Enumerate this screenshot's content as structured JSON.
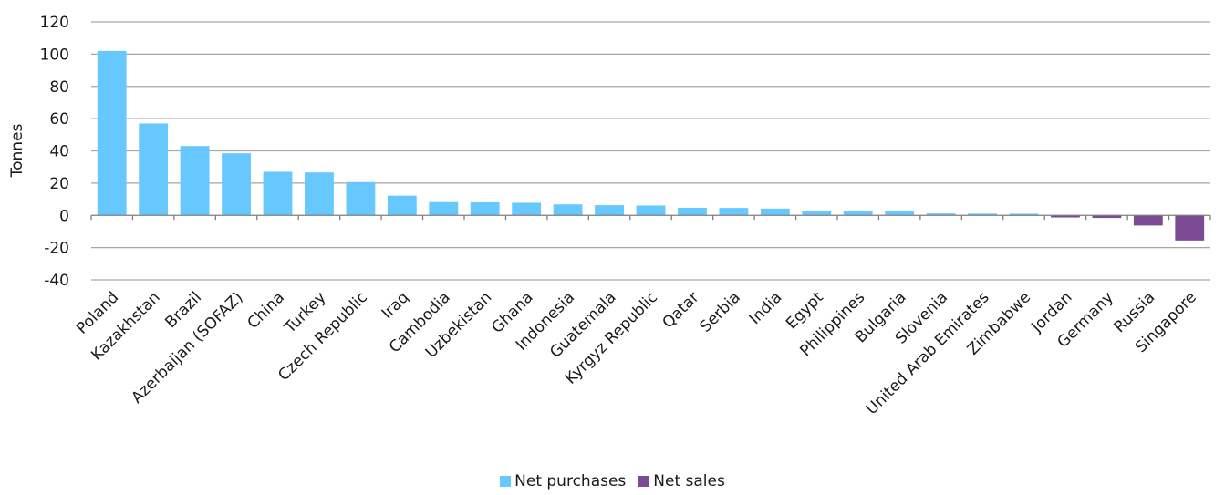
{
  "chart_data": {
    "type": "bar",
    "title": "",
    "xlabel": "",
    "ylabel": "Tonnes",
    "ylim": [
      -40,
      120
    ],
    "yticks": [
      "-40",
      "-20",
      "0",
      "20",
      "40",
      "60",
      "80",
      "100",
      "120"
    ],
    "grid": true,
    "legend_position": "bottom",
    "categories": [
      "Poland",
      "Kazakhstan",
      "Brazil",
      "Azerbaijan (SOFAZ)",
      "China",
      "Turkey",
      "Czech Republic",
      "Iraq",
      "Cambodia",
      "Uzbekistan",
      "Ghana",
      "Indonesia",
      "Guatemala",
      "Kyrgyz Republic",
      "Qatar",
      "Serbia",
      "India",
      "Egypt",
      "Philippines",
      "Bulgaria",
      "Slovenia",
      "United Arab Emirates",
      "Zimbabwe",
      "Jordan",
      "Germany",
      "Russia",
      "Singapore"
    ],
    "series": [
      {
        "name": "Net purchases",
        "color": "#66c8ff",
        "values": [
          102,
          57,
          43,
          38.5,
          27,
          26.6,
          20.6,
          12.2,
          8.2,
          8.1,
          7.8,
          6.8,
          6.3,
          6.1,
          4.7,
          4.6,
          4.2,
          2.7,
          2.6,
          2.4,
          1.2,
          1.1,
          1.0,
          null,
          null,
          null,
          null
        ]
      },
      {
        "name": "Net sales",
        "color": "#7d4a94",
        "values": [
          null,
          null,
          null,
          null,
          null,
          null,
          null,
          null,
          null,
          null,
          null,
          null,
          null,
          null,
          null,
          null,
          null,
          null,
          null,
          null,
          null,
          null,
          null,
          -1.3,
          -1.6,
          -6.3,
          -15.6
        ]
      }
    ]
  }
}
